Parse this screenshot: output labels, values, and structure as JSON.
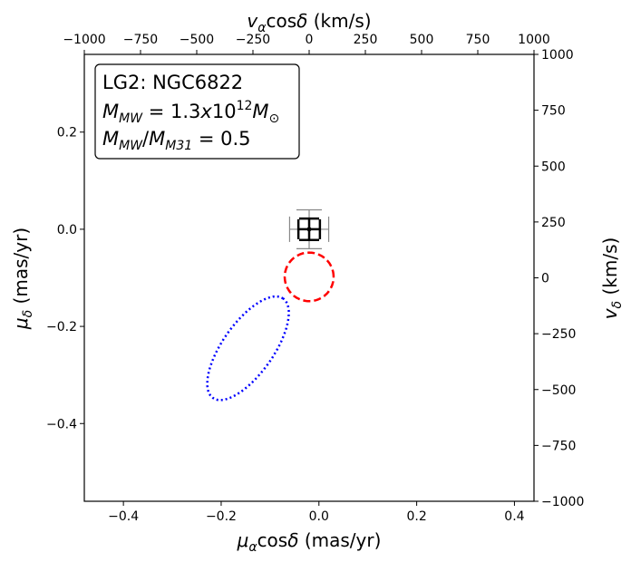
{
  "chart_data": {
    "type": "scatter",
    "title": "",
    "xlabel": "μ_α cos δ (mas/yr)",
    "ylabel": "μ_δ (mas/yr)",
    "x2label": "v_α cos δ (km/s)",
    "y2label": "v_δ (km/s)",
    "xlim": [
      -0.48,
      0.44
    ],
    "ylim": [
      -0.56,
      0.36
    ],
    "x2lim": [
      -1000,
      1000
    ],
    "y2lim": [
      -1000,
      1000
    ],
    "xticks": [
      -0.4,
      -0.2,
      0.0,
      0.2,
      0.4
    ],
    "yticks": [
      -0.4,
      -0.2,
      0.0,
      0.2
    ],
    "x2ticks": [
      -1000,
      -750,
      -500,
      -250,
      0,
      250,
      500,
      750,
      1000
    ],
    "y2ticks": [
      -1000,
      -750,
      -500,
      -250,
      0,
      250,
      500,
      750,
      1000
    ],
    "xtick_labels": [
      "−0.4",
      "−0.2",
      "0.0",
      "0.2",
      "0.4"
    ],
    "ytick_labels": [
      "−0.4",
      "−0.2",
      "0.0",
      "0.2"
    ],
    "x2tick_labels": [
      "−1000",
      "−750",
      "−500",
      "−250",
      "0",
      "250",
      "500",
      "750",
      "1000"
    ],
    "y2tick_labels": [
      "−1000",
      "−750",
      "−500",
      "−250",
      "0",
      "250",
      "500",
      "750",
      "1000"
    ],
    "grid": false,
    "annotation": {
      "line1": "LG2: NGC6822",
      "line2": "M_MW = 1.3x10^12 M_⊙",
      "line3": "M_MW/M_M31 = 0.5",
      "placement": "top-left"
    },
    "observed_point": {
      "x": -0.02,
      "y": 0.0,
      "xerr_outer": 0.04,
      "yerr_outer": 0.04,
      "xerr_inner": 0.022,
      "yerr_inner": 0.022,
      "colors": {
        "outer": "#888888",
        "inner": "#000000"
      }
    },
    "contours": [
      {
        "style": "dashed",
        "color": "#ff0000",
        "center": [
          -0.02,
          -0.098
        ],
        "semi_axes": [
          0.05,
          0.05
        ],
        "angle_deg": 0
      },
      {
        "style": "dotted",
        "color": "#0000ff",
        "center": [
          -0.145,
          -0.245
        ],
        "semi_axes": [
          0.125,
          0.052
        ],
        "angle_deg": 55
      }
    ]
  }
}
